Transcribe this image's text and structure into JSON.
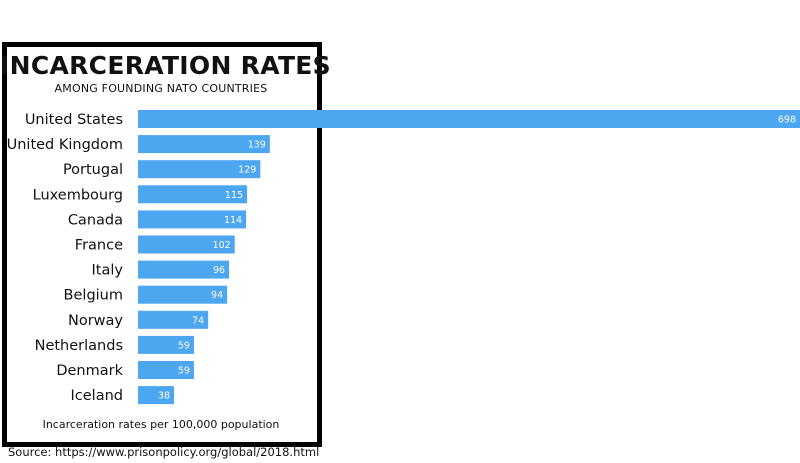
{
  "chart_data": {
    "type": "bar",
    "orientation": "horizontal",
    "title": "INCARCERATION RATES",
    "subtitle": "AMONG FOUNDING NATO COUNTRIES",
    "xlabel": "Incarceration rates per 100,000 population",
    "ylabel": "",
    "categories": [
      "United States",
      "United Kingdom",
      "Portugal",
      "Luxembourg",
      "Canada",
      "France",
      "Italy",
      "Belgium",
      "Norway",
      "Netherlands",
      "Denmark",
      "Iceland"
    ],
    "values": [
      698,
      139,
      129,
      115,
      114,
      102,
      96,
      94,
      74,
      59,
      59,
      38
    ],
    "xlim": [
      0,
      698
    ],
    "grid": false,
    "legend": "none",
    "bar_color": "#4da6f0"
  },
  "source": "Source: https://www.prisonpolicy.org/global/2018.html"
}
